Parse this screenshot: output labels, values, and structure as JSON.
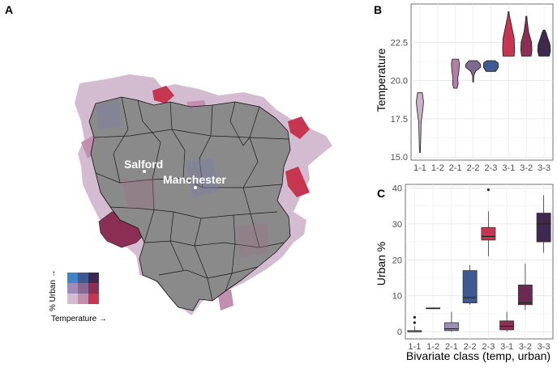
{
  "panels": {
    "a": "A",
    "b": "B",
    "c": "C"
  },
  "colors": {
    "class_fill": {
      "1-1": "#d3bcd0",
      "1-2": "#9f8cb9",
      "1-3": "#3d86c7",
      "2-1": "#c28fae",
      "2-2": "#8a6894",
      "2-3": "#3f5a93",
      "3-1": "#c73650",
      "3-2": "#8b2f55",
      "3-3": "#3e2a4f"
    },
    "map_base": "#8a8a8a"
  },
  "map": {
    "labels": [
      "Salford",
      "Manchester"
    ],
    "legend": {
      "x_label": "Temperature →",
      "y_label": "% Urban →"
    }
  },
  "chart_data": [
    {
      "panel": "B",
      "type": "violin",
      "title": "",
      "xlabel": "",
      "ylabel": "Temperature",
      "categories": [
        "1-1",
        "1-2",
        "2-1",
        "2-2",
        "2-3",
        "3-1",
        "3-2",
        "3-3"
      ],
      "yticks": [
        15.0,
        17.5,
        20.0,
        22.5
      ],
      "ylim": [
        14.8,
        25.0
      ],
      "grid": true,
      "series": [
        {
          "category": "1-1",
          "min": 15.3,
          "max": 19.2
        },
        {
          "category": "1-2",
          "min": null,
          "max": null
        },
        {
          "category": "2-1",
          "min": 19.5,
          "max": 21.4
        },
        {
          "category": "2-2",
          "min": 19.9,
          "max": 21.3
        },
        {
          "category": "2-3",
          "min": 20.6,
          "max": 21.3
        },
        {
          "category": "3-1",
          "min": 21.6,
          "max": 24.5
        },
        {
          "category": "3-2",
          "min": 21.6,
          "max": 24.2
        },
        {
          "category": "3-3",
          "min": 21.6,
          "max": 23.3
        }
      ]
    },
    {
      "panel": "C",
      "type": "box",
      "title": "",
      "xlabel": "Bivariate class (temp, urban)",
      "ylabel": "Urban %",
      "categories": [
        "1-1",
        "1-2",
        "2-1",
        "2-2",
        "2-3",
        "3-1",
        "3-2",
        "3-3"
      ],
      "yticks": [
        0,
        10,
        20,
        30,
        40
      ],
      "ylim": [
        -2,
        41
      ],
      "grid": true,
      "boxes": [
        {
          "category": "1-1",
          "min": 0,
          "q1": 0,
          "median": 0,
          "q3": 0.3,
          "max": 1.5,
          "outliers": [
            2.5,
            4
          ]
        },
        {
          "category": "1-2",
          "min": 6.5,
          "q1": 6.5,
          "median": 6.5,
          "q3": 6.6,
          "max": 6.7,
          "outliers": []
        },
        {
          "category": "2-1",
          "min": 0,
          "q1": 0.3,
          "median": 0.8,
          "q3": 2.5,
          "max": 5.5,
          "outliers": []
        },
        {
          "category": "2-2",
          "min": 7.5,
          "q1": 8,
          "median": 9.5,
          "q3": 17,
          "max": 18.5,
          "outliers": []
        },
        {
          "category": "2-3",
          "min": 21,
          "q1": 25.5,
          "median": 26.5,
          "q3": 29,
          "max": 33.5,
          "outliers": [
            39.5
          ]
        },
        {
          "category": "3-1",
          "min": 0,
          "q1": 0.5,
          "median": 1.5,
          "q3": 3,
          "max": 5.5,
          "outliers": []
        },
        {
          "category": "3-2",
          "min": 6,
          "q1": 7.5,
          "median": 8,
          "q3": 13,
          "max": 19,
          "outliers": []
        },
        {
          "category": "3-3",
          "min": 22,
          "q1": 25,
          "median": 30,
          "q3": 33,
          "max": 38,
          "outliers": []
        }
      ]
    }
  ]
}
